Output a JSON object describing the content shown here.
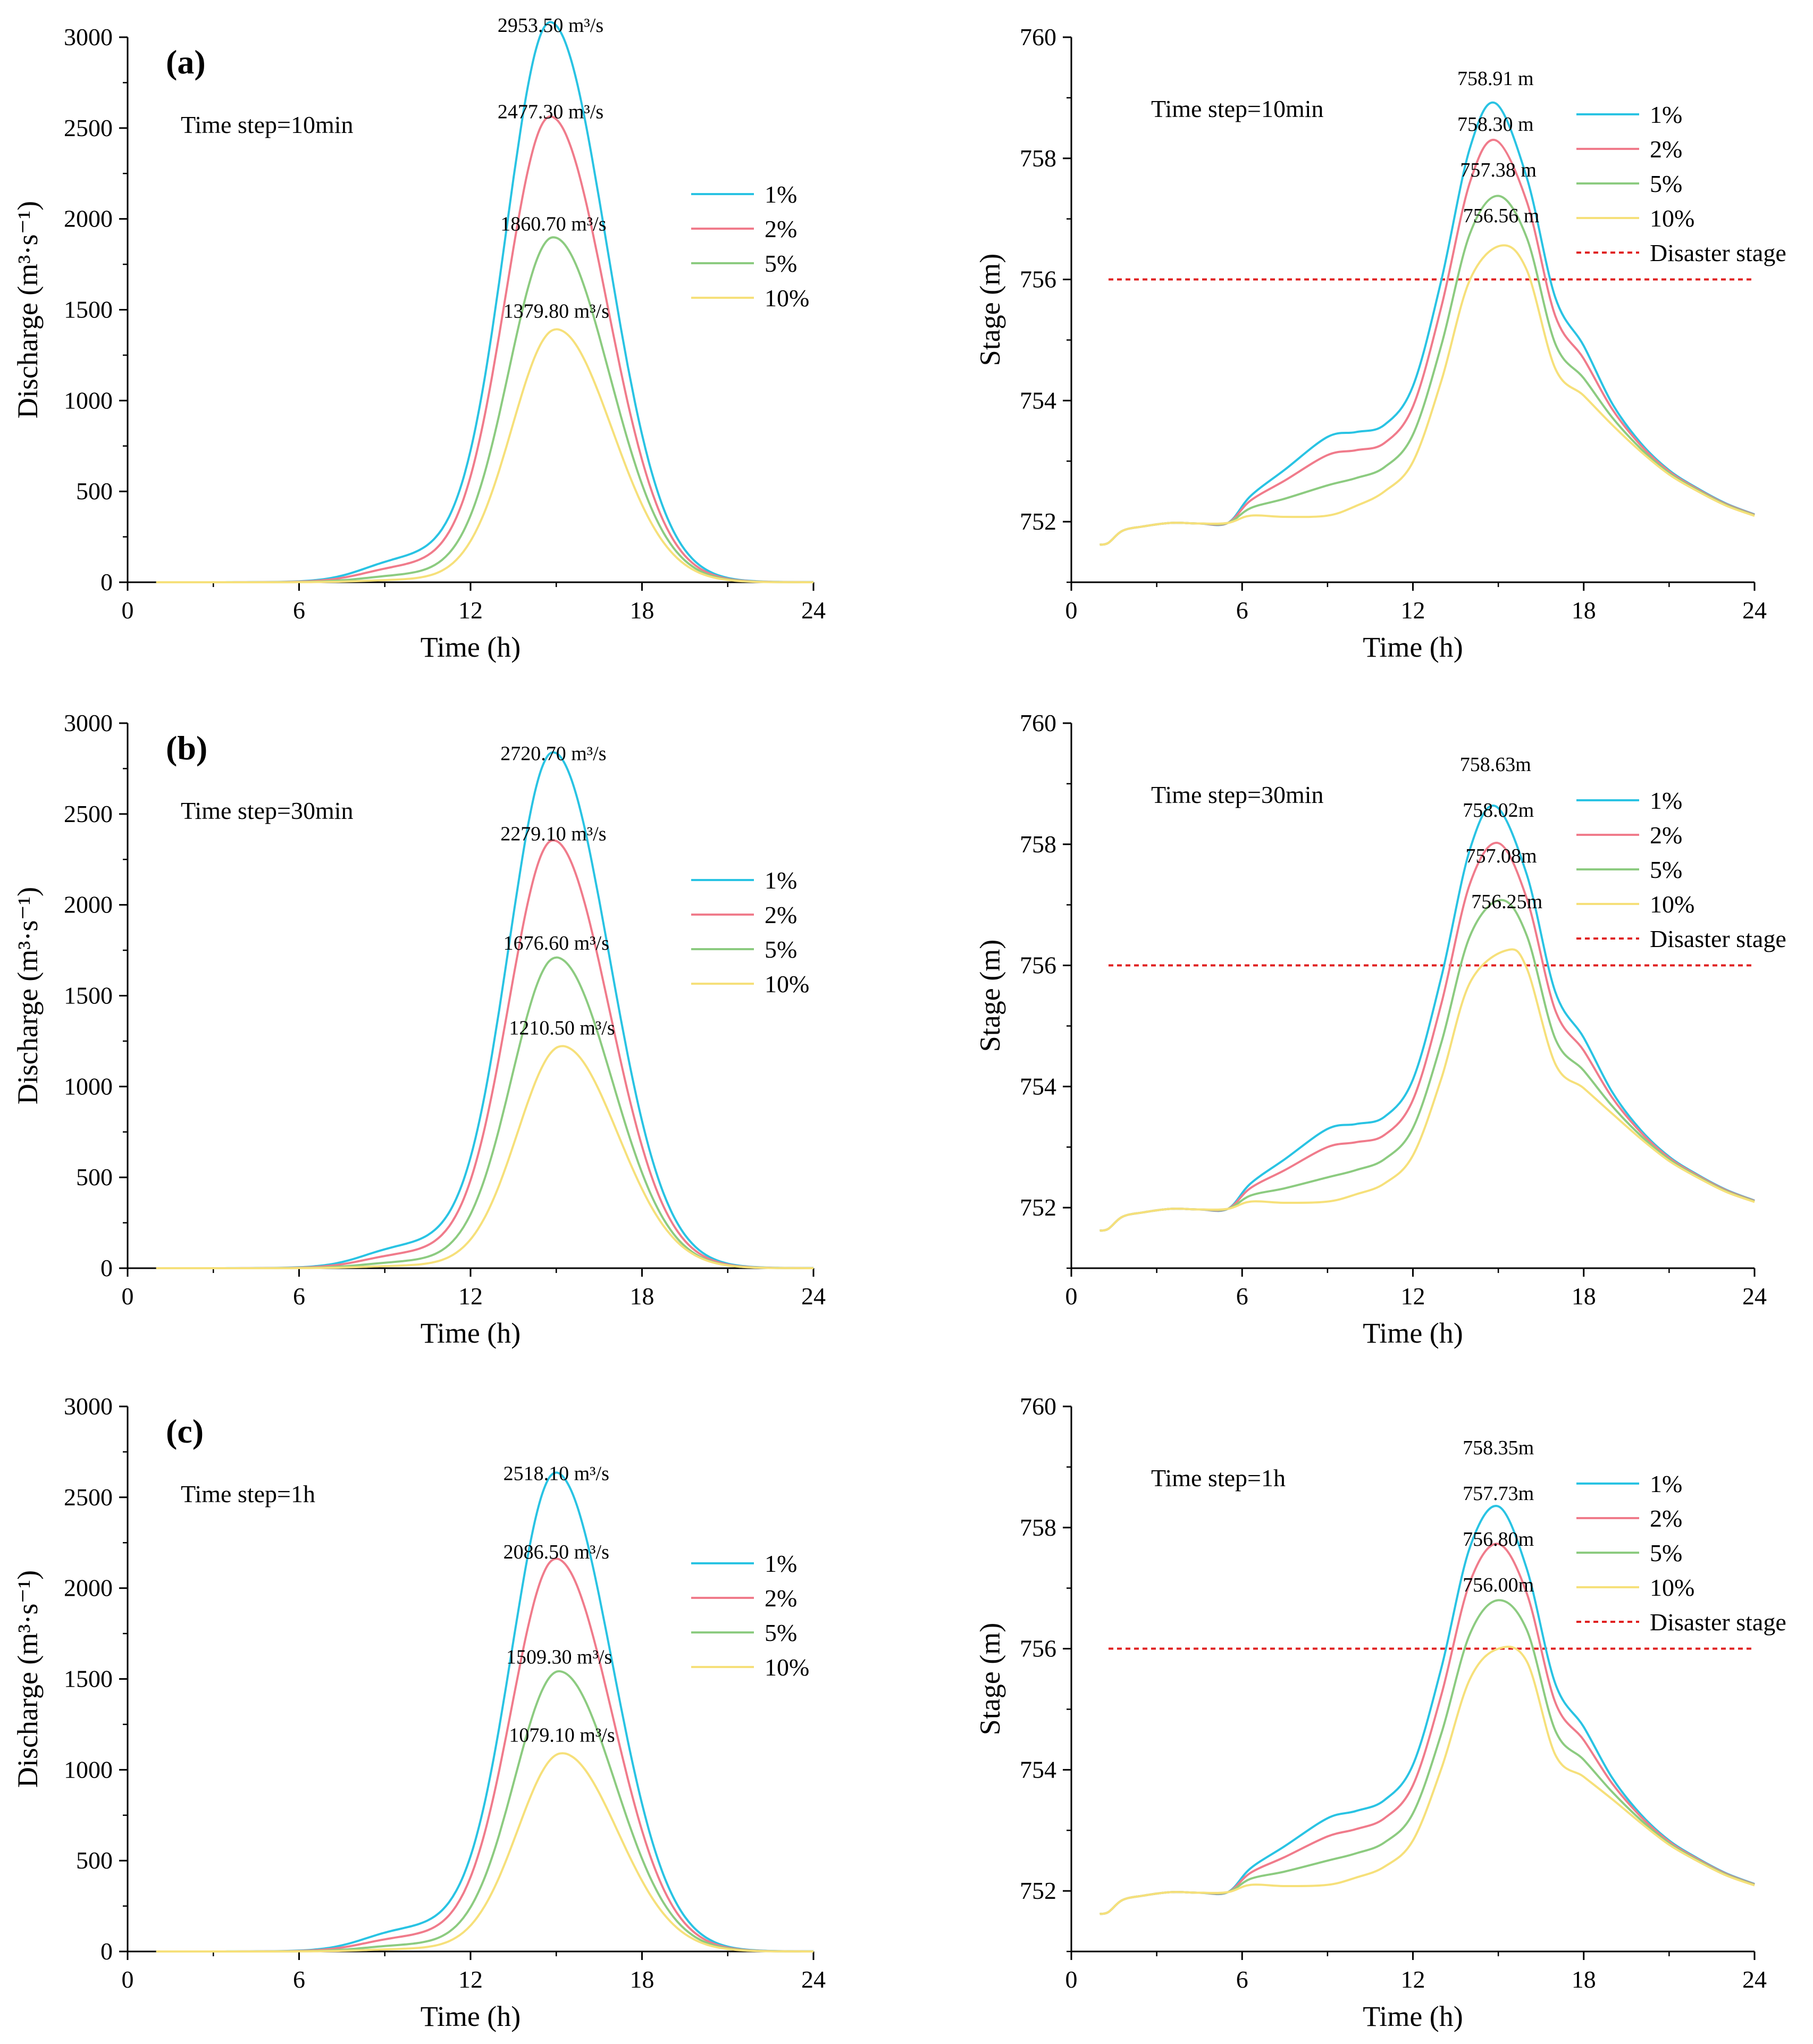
{
  "chart_data": [
    {
      "id": "a-discharge",
      "type": "line",
      "panel_label": "(a)",
      "note": "Time step=10min",
      "xlabel": "Time (h)",
      "ylabel": "Discharge (m³·s⁻¹)",
      "xlim": [
        0,
        24
      ],
      "ylim": [
        0,
        3000
      ],
      "xticks": [
        0,
        6,
        12,
        18,
        24
      ],
      "yticks": [
        0,
        500,
        1000,
        1500,
        2000,
        2500,
        3000
      ],
      "legend": "right",
      "series": [
        {
          "name": "1%",
          "color": "#29c3e3",
          "peak_x": 14.8,
          "peak": 2953.5,
          "base": 150,
          "peak_label": "2953.50 m³/s"
        },
        {
          "name": "2%",
          "color": "#f07b8b",
          "peak_x": 14.8,
          "peak": 2477.3,
          "base": 100,
          "peak_label": "2477.30 m³/s"
        },
        {
          "name": "5%",
          "color": "#8ccb80",
          "peak_x": 14.9,
          "peak": 1860.7,
          "base": 45,
          "peak_label": "1860.70 m³/s"
        },
        {
          "name": "10%",
          "color": "#f6e07a",
          "peak_x": 15.0,
          "peak": 1379.8,
          "base": 15,
          "peak_label": "1379.80 m³/s"
        }
      ]
    },
    {
      "id": "a-stage",
      "type": "line",
      "note": "Time step=10min",
      "xlabel": "Time (h)",
      "ylabel": "Stage (m)",
      "xlim": [
        0,
        24
      ],
      "ylim": [
        751,
        760
      ],
      "xticks": [
        0,
        6,
        12,
        18,
        24
      ],
      "yticks": [
        752,
        754,
        756,
        758,
        760
      ],
      "legend": "top-right",
      "disaster_stage": {
        "name": "Disaster stage",
        "value": 756,
        "color": "#e02020"
      },
      "series": [
        {
          "name": "1%",
          "color": "#29c3e3",
          "peak_x": 14.9,
          "peak": 758.91,
          "s9": 753.4,
          "s11": 753.6,
          "peak_label": "758.91 m"
        },
        {
          "name": "2%",
          "color": "#f07b8b",
          "peak_x": 14.9,
          "peak": 758.3,
          "s9": 753.1,
          "s11": 753.3,
          "peak_label": "758.30 m"
        },
        {
          "name": "5%",
          "color": "#8ccb80",
          "peak_x": 15.0,
          "peak": 757.38,
          "s9": 752.6,
          "s11": 752.9,
          "peak_label": "757.38 m"
        },
        {
          "name": "10%",
          "color": "#f6e07a",
          "peak_x": 15.1,
          "peak": 756.56,
          "s9": 752.1,
          "s11": 752.5,
          "peak_label": "756.56 m"
        }
      ]
    },
    {
      "id": "b-discharge",
      "type": "line",
      "panel_label": "(b)",
      "note": "Time step=30min",
      "xlabel": "Time (h)",
      "ylabel": "Discharge (m³·s⁻¹)",
      "xlim": [
        0,
        24
      ],
      "ylim": [
        0,
        3000
      ],
      "xticks": [
        0,
        6,
        12,
        18,
        24
      ],
      "yticks": [
        0,
        500,
        1000,
        1500,
        2000,
        2500,
        3000
      ],
      "legend": "right",
      "series": [
        {
          "name": "1%",
          "color": "#29c3e3",
          "peak_x": 14.9,
          "peak": 2720.7,
          "base": 140,
          "peak_label": "2720.70 m³/s"
        },
        {
          "name": "2%",
          "color": "#f07b8b",
          "peak_x": 14.9,
          "peak": 2279.1,
          "base": 90,
          "peak_label": "2279.10 m³/s"
        },
        {
          "name": "5%",
          "color": "#8ccb80",
          "peak_x": 15.0,
          "peak": 1676.6,
          "base": 40,
          "peak_label": "1676.60 m³/s"
        },
        {
          "name": "10%",
          "color": "#f6e07a",
          "peak_x": 15.2,
          "peak": 1210.5,
          "base": 15,
          "peak_label": "1210.50 m³/s"
        }
      ]
    },
    {
      "id": "b-stage",
      "type": "line",
      "note": "Time step=30min",
      "xlabel": "Time (h)",
      "ylabel": "Stage (m)",
      "xlim": [
        0,
        24
      ],
      "ylim": [
        751,
        760
      ],
      "xticks": [
        0,
        6,
        12,
        18,
        24
      ],
      "yticks": [
        752,
        754,
        756,
        758,
        760
      ],
      "legend": "top-right",
      "disaster_stage": {
        "name": "Disaster stage",
        "value": 756,
        "color": "#e02020"
      },
      "series": [
        {
          "name": "1%",
          "color": "#29c3e3",
          "peak_x": 14.9,
          "peak": 758.63,
          "s9": 753.3,
          "s11": 753.5,
          "peak_label": "758.63m"
        },
        {
          "name": "2%",
          "color": "#f07b8b",
          "peak_x": 15.0,
          "peak": 758.02,
          "s9": 753.0,
          "s11": 753.2,
          "peak_label": "758.02m"
        },
        {
          "name": "5%",
          "color": "#8ccb80",
          "peak_x": 15.1,
          "peak": 757.08,
          "s9": 752.5,
          "s11": 752.8,
          "peak_label": "757.08m"
        },
        {
          "name": "10%",
          "color": "#f6e07a",
          "peak_x": 15.3,
          "peak": 756.25,
          "s9": 752.1,
          "s11": 752.4,
          "peak_label": "756.25m"
        }
      ]
    },
    {
      "id": "c-discharge",
      "type": "line",
      "panel_label": "(c)",
      "note": "Time step=1h",
      "xlabel": "Time (h)",
      "ylabel": "Discharge (m³·s⁻¹)",
      "xlim": [
        0,
        24
      ],
      "ylim": [
        0,
        3000
      ],
      "xticks": [
        0,
        6,
        12,
        18,
        24
      ],
      "yticks": [
        0,
        500,
        1000,
        1500,
        2000,
        2500,
        3000
      ],
      "legend": "right",
      "series": [
        {
          "name": "1%",
          "color": "#29c3e3",
          "peak_x": 15.0,
          "peak": 2518.1,
          "base": 140,
          "peak_label": "2518.10 m³/s"
        },
        {
          "name": "2%",
          "color": "#f07b8b",
          "peak_x": 15.0,
          "peak": 2086.5,
          "base": 90,
          "peak_label": "2086.50 m³/s"
        },
        {
          "name": "5%",
          "color": "#8ccb80",
          "peak_x": 15.1,
          "peak": 1509.3,
          "base": 40,
          "peak_label": "1509.30 m³/s"
        },
        {
          "name": "10%",
          "color": "#f6e07a",
          "peak_x": 15.2,
          "peak": 1079.1,
          "base": 15,
          "peak_label": "1079.10 m³/s"
        }
      ]
    },
    {
      "id": "c-stage",
      "type": "line",
      "note": "Time step=1h",
      "xlabel": "Time (h)",
      "ylabel": "Stage (m)",
      "xlim": [
        0,
        24
      ],
      "ylim": [
        751,
        760
      ],
      "xticks": [
        0,
        6,
        12,
        18,
        24
      ],
      "yticks": [
        752,
        754,
        756,
        758,
        760
      ],
      "legend": "top-right",
      "disaster_stage": {
        "name": "Disaster stage",
        "value": 756,
        "color": "#e02020"
      },
      "series": [
        {
          "name": "1%",
          "color": "#29c3e3",
          "peak_x": 15.0,
          "peak": 758.35,
          "s9": 753.2,
          "s11": 753.5,
          "peak_label": "758.35m"
        },
        {
          "name": "2%",
          "color": "#f07b8b",
          "peak_x": 15.0,
          "peak": 757.73,
          "s9": 752.9,
          "s11": 753.2,
          "peak_label": "757.73m"
        },
        {
          "name": "5%",
          "color": "#8ccb80",
          "peak_x": 15.0,
          "peak": 756.8,
          "s9": 752.5,
          "s11": 752.8,
          "peak_label": "756.80m"
        },
        {
          "name": "10%",
          "color": "#f6e07a",
          "peak_x": 15.0,
          "peak": 756.0,
          "s9": 752.1,
          "s11": 752.4,
          "peak_label": "756.00m"
        }
      ]
    }
  ]
}
